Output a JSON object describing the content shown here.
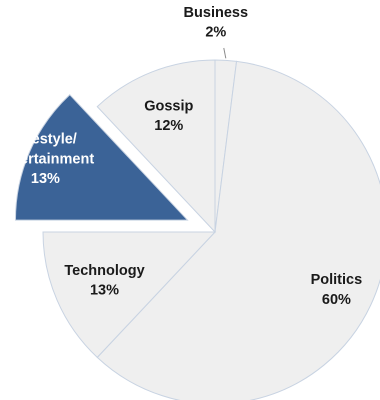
{
  "chart_data": {
    "type": "pie",
    "slices": [
      {
        "label": "Business",
        "value": 2,
        "value_label": "2%",
        "exploded": false,
        "fill": "#efefef",
        "text_color": "#1a1a1a"
      },
      {
        "label": "Politics",
        "value": 60,
        "value_label": "60%",
        "exploded": false,
        "fill": "#efefef",
        "text_color": "#1a1a1a"
      },
      {
        "label": "Technology",
        "value": 13,
        "value_label": "13%",
        "exploded": false,
        "fill": "#efefef",
        "text_color": "#1a1a1a"
      },
      {
        "label": "Lifestyle/ Entertainment",
        "label_lines": [
          "Lifestyle/",
          "Entertainment"
        ],
        "value": 13,
        "value_label": "13%",
        "exploded": true,
        "fill": "#3b6397",
        "text_color": "#ffffff"
      },
      {
        "label": "Gossip",
        "value": 12,
        "value_label": "12%",
        "exploded": false,
        "fill": "#efefef",
        "text_color": "#1a1a1a"
      }
    ],
    "start_angle_deg": 0,
    "direction": "clockwise",
    "legend": "none",
    "colors": {
      "default_fill": "#efefef",
      "highlight_fill": "#3b6397",
      "stroke": "#c8d3e2"
    }
  }
}
